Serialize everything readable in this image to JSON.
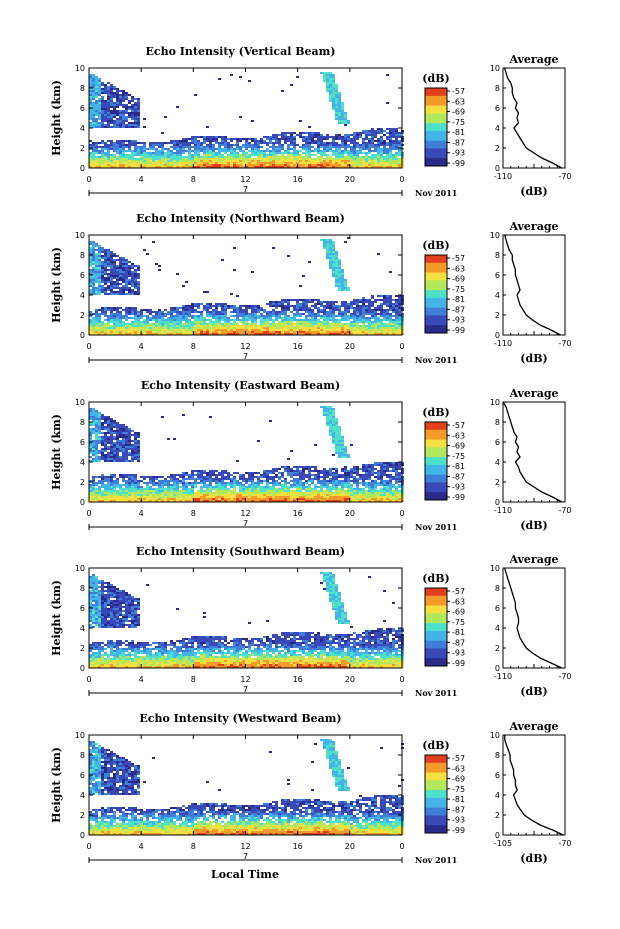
{
  "figure": {
    "xlabel": "Local Time",
    "date_label": "Nov 2011",
    "day_marker": "7",
    "ylabel": "Height (km)",
    "units_label": "(dB)",
    "avg_title": "Average",
    "avg_xlabel": "(dB)"
  },
  "chart_data": [
    {
      "type": "heatmap",
      "title": "Echo Intensity (Vertical Beam)",
      "ylabel": "Height (km)",
      "x_ticks": [
        "0",
        "4",
        "8",
        "12",
        "16",
        "20",
        "0"
      ],
      "xlim": [
        0,
        24
      ],
      "ylim": [
        0,
        10
      ],
      "y_ticks": [
        "0",
        "2",
        "4",
        "6",
        "8",
        "10"
      ],
      "colorbar_ticks": [
        "-57",
        "-63",
        "-69",
        "-75",
        "-81",
        "-87",
        "-93",
        "-99"
      ],
      "colorbar_range": [
        -99,
        -57
      ],
      "avg_ticks": [
        "-110",
        "-70"
      ],
      "avg_xlim": [
        -110,
        -70
      ],
      "avg_profile": {
        "height": [
          0,
          0.5,
          1,
          1.5,
          2,
          2.5,
          3,
          3.5,
          4,
          4.5,
          5,
          5.5,
          6,
          6.5,
          7,
          7.5,
          8,
          8.5,
          9,
          9.5,
          10
        ],
        "db": [
          -72,
          -78,
          -85,
          -90,
          -95,
          -97,
          -99,
          -101,
          -103,
          -100,
          -101,
          -100,
          -102,
          -101,
          -103,
          -104,
          -104,
          -105,
          -107,
          -108,
          -109
        ]
      }
    },
    {
      "type": "heatmap",
      "title": "Echo Intensity (Northward Beam)",
      "ylabel": "Height (km)",
      "x_ticks": [
        "0",
        "4",
        "8",
        "12",
        "16",
        "20",
        "0"
      ],
      "xlim": [
        0,
        24
      ],
      "ylim": [
        0,
        10
      ],
      "y_ticks": [
        "0",
        "2",
        "4",
        "6",
        "8",
        "10"
      ],
      "colorbar_ticks": [
        "-57",
        "-63",
        "-69",
        "-75",
        "-81",
        "-87",
        "-93",
        "-99"
      ],
      "colorbar_range": [
        -99,
        -57
      ],
      "avg_ticks": [
        "-110",
        "-70"
      ],
      "avg_xlim": [
        -110,
        -70
      ],
      "avg_profile": {
        "height": [
          0,
          0.5,
          1,
          1.5,
          2,
          2.5,
          3,
          3.5,
          4,
          4.5,
          5,
          5.5,
          6,
          6.5,
          7,
          7.5,
          8,
          8.5,
          9,
          9.5,
          10
        ],
        "db": [
          -73,
          -79,
          -86,
          -91,
          -95,
          -97,
          -99,
          -100,
          -101,
          -99,
          -100,
          -101,
          -102,
          -102,
          -103,
          -104,
          -104,
          -106,
          -107,
          -108,
          -109
        ]
      }
    },
    {
      "type": "heatmap",
      "title": "Echo Intensity (Eastward Beam)",
      "ylabel": "Height (km)",
      "x_ticks": [
        "0",
        "4",
        "8",
        "12",
        "16",
        "20",
        "0"
      ],
      "xlim": [
        0,
        24
      ],
      "ylim": [
        0,
        10
      ],
      "y_ticks": [
        "0",
        "2",
        "4",
        "6",
        "8",
        "10"
      ],
      "colorbar_ticks": [
        "-57",
        "-63",
        "-69",
        "-75",
        "-81",
        "-87",
        "-93",
        "-99"
      ],
      "colorbar_range": [
        -99,
        -57
      ],
      "avg_ticks": [
        "-110",
        "-70"
      ],
      "avg_xlim": [
        -110,
        -70
      ],
      "avg_profile": {
        "height": [
          0,
          0.5,
          1,
          1.5,
          2,
          2.5,
          3,
          3.5,
          4,
          4.5,
          5,
          5.5,
          6,
          6.5,
          7,
          7.5,
          8,
          8.5,
          9,
          9.5,
          10
        ],
        "db": [
          -72,
          -78,
          -85,
          -90,
          -95,
          -97,
          -99,
          -100,
          -102,
          -99,
          -101,
          -100,
          -102,
          -101,
          -103,
          -104,
          -105,
          -106,
          -107,
          -108,
          -110
        ]
      }
    },
    {
      "type": "heatmap",
      "title": "Echo Intensity (Southward Beam)",
      "ylabel": "Height (km)",
      "x_ticks": [
        "0",
        "4",
        "8",
        "12",
        "16",
        "20",
        "0"
      ],
      "xlim": [
        0,
        24
      ],
      "ylim": [
        0,
        10
      ],
      "y_ticks": [
        "0",
        "2",
        "4",
        "6",
        "8",
        "10"
      ],
      "colorbar_ticks": [
        "-57",
        "-63",
        "-69",
        "-75",
        "-81",
        "-87",
        "-93",
        "-99"
      ],
      "colorbar_range": [
        -99,
        -57
      ],
      "avg_ticks": [
        "-110",
        "-70"
      ],
      "avg_xlim": [
        -110,
        -70
      ],
      "avg_profile": {
        "height": [
          0,
          0.5,
          1,
          1.5,
          2,
          2.5,
          3,
          3.5,
          4,
          4.5,
          5,
          5.5,
          6,
          6.5,
          7,
          7.5,
          8,
          8.5,
          9,
          9.5,
          10
        ],
        "db": [
          -72,
          -79,
          -86,
          -91,
          -95,
          -97,
          -99,
          -100,
          -101,
          -100,
          -100,
          -101,
          -102,
          -102,
          -103,
          -104,
          -105,
          -106,
          -107,
          -108,
          -109
        ]
      }
    },
    {
      "type": "heatmap",
      "title": "Echo Intensity (Westward Beam)",
      "ylabel": "Height (km)",
      "x_ticks": [
        "0",
        "4",
        "8",
        "12",
        "16",
        "20",
        "0"
      ],
      "xlim": [
        0,
        24
      ],
      "ylim": [
        0,
        10
      ],
      "y_ticks": [
        "0",
        "2",
        "4",
        "6",
        "8",
        "10"
      ],
      "colorbar_ticks": [
        "-57",
        "-63",
        "-69",
        "-75",
        "-81",
        "-87",
        "-93",
        "-99"
      ],
      "colorbar_range": [
        -99,
        -57
      ],
      "avg_ticks": [
        "-105",
        "-70"
      ],
      "avg_xlim": [
        -105,
        -70
      ],
      "avg_profile": {
        "height": [
          0,
          0.5,
          1,
          1.5,
          2,
          2.5,
          3,
          3.5,
          4,
          4.5,
          5,
          5.5,
          6,
          6.5,
          7,
          7.5,
          8,
          8.5,
          9,
          9.5,
          10
        ],
        "db": [
          -71,
          -77,
          -84,
          -89,
          -93,
          -95,
          -97,
          -98,
          -99,
          -97,
          -98,
          -98,
          -99,
          -99,
          -100,
          -101,
          -101,
          -102,
          -103,
          -104,
          -104
        ]
      }
    }
  ],
  "colors": {
    "colormap": [
      "#2a2a8a",
      "#3a49b8",
      "#3f7fd8",
      "#43b4e8",
      "#4fe0c8",
      "#b4e85c",
      "#f4e040",
      "#f49a2a",
      "#e0401e"
    ]
  }
}
